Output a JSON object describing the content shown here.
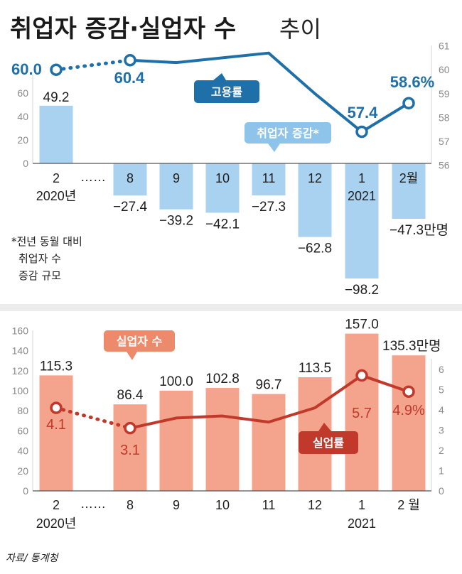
{
  "title": {
    "main": "취업자 증감·실업자 수",
    "sub": "추이"
  },
  "note_lines": [
    "*전년 동월 대비",
    "취업자 수",
    "증감 규모"
  ],
  "source": "자료/ 통계청",
  "colors": {
    "blue_bar": "#a9d1f0",
    "blue_line": "#1f6fa8",
    "red_bar": "#f4a48c",
    "red_line": "#c0392b",
    "panel_bg": "#ececec"
  },
  "chart_data": [
    {
      "type": "bar",
      "name": "top-employment-panel",
      "categories": [
        "2",
        "8",
        "9",
        "10",
        "11",
        "12",
        "1",
        "2"
      ],
      "category_labels": [
        "2",
        "8",
        "9",
        "10",
        "11",
        "12",
        "1",
        "2월"
      ],
      "year_labels": [
        {
          "index": 0,
          "text": "2020년"
        },
        {
          "index": 6,
          "text": "2021"
        }
      ],
      "gap_label": "……",
      "series": [
        {
          "name": "취업자 증감*",
          "values": [
            49.2,
            -27.4,
            -39.2,
            -42.1,
            -27.3,
            -62.8,
            -98.2,
            -47.3
          ],
          "value_labels": [
            "49.2",
            "−27.4",
            "−39.2",
            "−42.1",
            "−27.3",
            "−62.8",
            "−98.2",
            "−47.3만명"
          ]
        },
        {
          "name": "고용률",
          "axis": "right",
          "values": [
            60.0,
            60.4,
            60.3,
            60.5,
            60.7,
            59.0,
            57.4,
            58.6
          ],
          "value_labels": [
            {
              "index": 0,
              "text": "60.0"
            },
            {
              "index": 1,
              "text": "60.4"
            },
            {
              "index": 6,
              "text": "57.4"
            },
            {
              "index": 7,
              "text": "58.6%"
            }
          ]
        }
      ],
      "left_axis": {
        "ticks": [
          0,
          20,
          40,
          60
        ]
      },
      "right_axis": {
        "ylim": [
          56,
          61
        ],
        "ticks": [
          56,
          57,
          58,
          59,
          60,
          61
        ]
      }
    },
    {
      "type": "bar",
      "name": "bottom-unemployment-panel",
      "categories": [
        "2",
        "8",
        "9",
        "10",
        "11",
        "12",
        "1",
        "2"
      ],
      "category_labels": [
        "2",
        "8",
        "9",
        "10",
        "11",
        "12",
        "1",
        "2 월"
      ],
      "year_labels": [
        {
          "index": 0,
          "text": "2020년"
        },
        {
          "index": 6,
          "text": "2021"
        }
      ],
      "gap_label": "……",
      "series": [
        {
          "name": "실업자 수",
          "values": [
            115.3,
            86.4,
            100.0,
            102.8,
            96.7,
            113.5,
            157.0,
            135.3
          ],
          "value_labels": [
            "115.3",
            "86.4",
            "100.0",
            "102.8",
            "96.7",
            "113.5",
            "157.0",
            "135.3만명"
          ]
        },
        {
          "name": "실업률",
          "axis": "right",
          "values": [
            4.1,
            3.1,
            3.6,
            3.7,
            3.4,
            4.1,
            5.7,
            4.9
          ],
          "value_labels": [
            {
              "index": 0,
              "text": "4.1"
            },
            {
              "index": 1,
              "text": "3.1"
            },
            {
              "index": 6,
              "text": "5.7"
            },
            {
              "index": 7,
              "text": "4.9%"
            }
          ]
        }
      ],
      "left_axis": {
        "ylim": [
          0,
          160
        ],
        "ticks": [
          0,
          20,
          40,
          60,
          80,
          100,
          120,
          140,
          160
        ]
      },
      "right_axis": {
        "ylim": [
          0,
          6
        ],
        "ticks": [
          0,
          1,
          2,
          3,
          4,
          5,
          6
        ]
      }
    }
  ]
}
